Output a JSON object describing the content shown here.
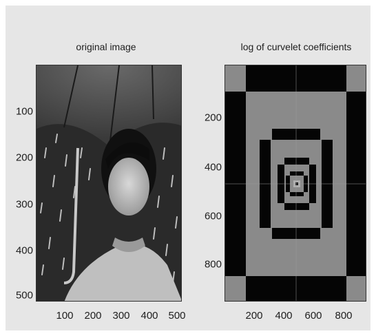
{
  "left_panel": {
    "title": "original image",
    "y_ticks": [
      "100",
      "200",
      "300",
      "400",
      "500"
    ],
    "x_ticks": [
      "100",
      "200",
      "300",
      "400",
      "500"
    ]
  },
  "right_panel": {
    "title": "log of curvelet coefficients",
    "y_ticks": [
      "200",
      "400",
      "600",
      "800"
    ],
    "x_ticks": [
      "200",
      "400",
      "600",
      "800"
    ]
  },
  "colors": {
    "figure_bg": "#e6e6e6",
    "coeff_gray": "#8a8a8a",
    "coeff_black": "#050505"
  }
}
